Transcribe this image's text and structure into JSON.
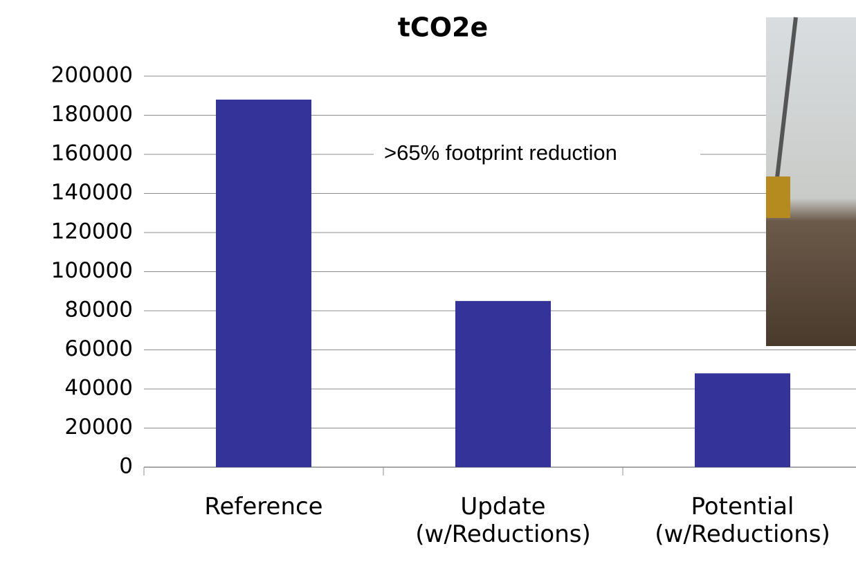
{
  "chart_data": {
    "type": "bar",
    "title": "tCO2e",
    "categories": [
      "Reference",
      "Update\n(w/Reductions)",
      "Potential\n(w/Reductions)"
    ],
    "values": [
      188000,
      85000,
      48000
    ],
    "color": "#333399",
    "ylim": [
      0,
      200000
    ],
    "yticks": [
      0,
      20000,
      40000,
      60000,
      80000,
      100000,
      120000,
      140000,
      160000,
      180000,
      200000
    ],
    "grid": true,
    "annotation": ">65% footprint reduction"
  }
}
